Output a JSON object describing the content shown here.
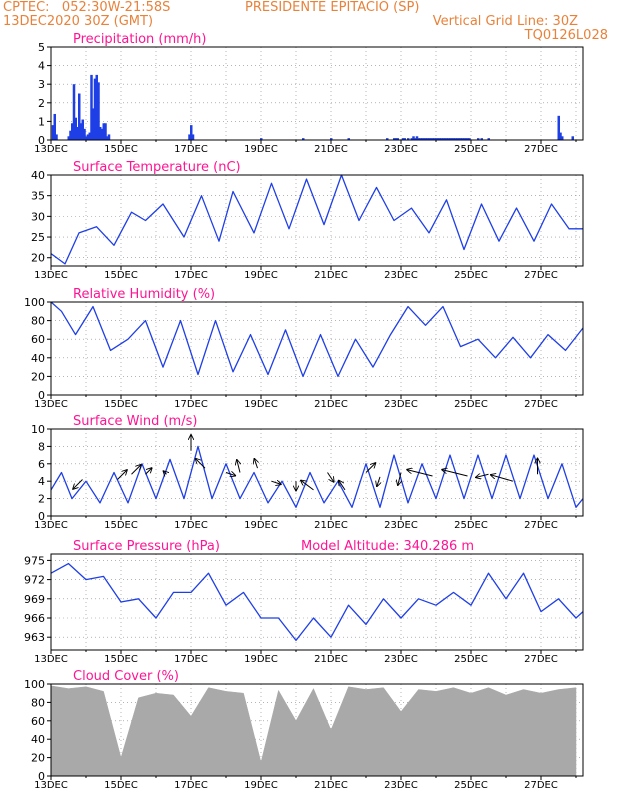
{
  "header": {
    "left_line1": "CPTEC:   052:30W-21:58S",
    "station": "PRESIDENTE EPITACIO (SP)",
    "left_line2": "13DEC2020 30Z (GMT)",
    "grid_note": "Vertical Grid Line: 30Z",
    "model_code": "TQ0126L028"
  },
  "colors": {
    "header": "#e8823a",
    "title": "#ff1493",
    "line": "#1f3fe6",
    "bar": "#1f3fe6",
    "cloud": "#a9a9a9",
    "arrow": "#000000"
  },
  "chart_data": [
    {
      "id": "precipitation",
      "type": "bar",
      "title": "Precipitation (mm/h)",
      "x_unit": "day_of_december",
      "x_range": [
        13,
        28.2
      ],
      "x_ticks": [
        "13DEC",
        "15DEC",
        "17DEC",
        "19DEC",
        "21DEC",
        "23DEC",
        "25DEC",
        "27DEC"
      ],
      "ylim": [
        0,
        5
      ],
      "y_ticks": [
        "0",
        "1",
        "2",
        "3",
        "4",
        "5"
      ],
      "grid": "dotted",
      "x": [
        13.05,
        13.1,
        13.15,
        13.5,
        13.55,
        13.6,
        13.65,
        13.7,
        13.75,
        13.8,
        13.85,
        13.9,
        13.95,
        14.0,
        14.05,
        14.1,
        14.15,
        14.2,
        14.25,
        14.3,
        14.35,
        14.4,
        14.45,
        14.5,
        14.55,
        14.6,
        14.65,
        16.95,
        17.0,
        17.05,
        19.0,
        20.2,
        21.0,
        21.5,
        22.6,
        22.8,
        22.85,
        22.9,
        23.05,
        23.1,
        23.2,
        23.3,
        23.35,
        23.4,
        23.45,
        23.5,
        23.55,
        23.6,
        23.65,
        23.7,
        23.75,
        23.8,
        23.85,
        23.9,
        23.95,
        24.0,
        24.05,
        24.1,
        24.15,
        24.2,
        24.25,
        24.3,
        24.35,
        24.4,
        24.45,
        24.5,
        24.55,
        24.6,
        24.65,
        24.7,
        24.75,
        24.8,
        24.85,
        24.9,
        24.95,
        25.2,
        25.3,
        25.5,
        27.5,
        27.55,
        27.6,
        27.9
      ],
      "values": [
        0.8,
        1.4,
        0.3,
        0.2,
        0.5,
        0.9,
        3.0,
        1.2,
        0.7,
        2.5,
        0.9,
        1.1,
        0.6,
        0.2,
        0.3,
        0.4,
        3.5,
        1.7,
        3.3,
        3.5,
        3.1,
        0.7,
        0.6,
        0.9,
        0.9,
        0.2,
        0.3,
        0.3,
        0.8,
        0.3,
        0.1,
        0.1,
        0.1,
        0.1,
        0.1,
        0.1,
        0.1,
        0.1,
        0.1,
        0.1,
        0.1,
        0.1,
        0.2,
        0.1,
        0.2,
        0.1,
        0.1,
        0.1,
        0.1,
        0.1,
        0.1,
        0.1,
        0.1,
        0.1,
        0.1,
        0.1,
        0.1,
        0.1,
        0.1,
        0.1,
        0.1,
        0.1,
        0.1,
        0.1,
        0.1,
        0.1,
        0.1,
        0.1,
        0.1,
        0.1,
        0.1,
        0.1,
        0.1,
        0.1,
        0.1,
        0.1,
        0.1,
        0.1,
        1.3,
        0.4,
        0.2,
        0.2
      ]
    },
    {
      "id": "temperature",
      "type": "line",
      "title": "Surface Temperature (nC)",
      "x_unit": "day_of_december",
      "x_range": [
        13,
        28.2
      ],
      "x_ticks": [
        "13DEC",
        "15DEC",
        "17DEC",
        "19DEC",
        "21DEC",
        "23DEC",
        "25DEC",
        "27DEC"
      ],
      "ylim": [
        18,
        40
      ],
      "y_ticks": [
        "20",
        "25",
        "30",
        "35",
        "40"
      ],
      "y_tick_values": [
        20,
        25,
        30,
        35,
        40
      ],
      "grid": "dotted",
      "x": [
        13,
        13.4,
        13.8,
        14.3,
        14.8,
        15.3,
        15.7,
        16.2,
        16.8,
        17.3,
        17.8,
        18.2,
        18.8,
        19.3,
        19.8,
        20.3,
        20.8,
        21.3,
        21.8,
        22.3,
        22.8,
        23.3,
        23.8,
        24.3,
        24.8,
        25.3,
        25.8,
        26.3,
        26.8,
        27.3,
        27.8,
        28.2
      ],
      "y": [
        21,
        18.5,
        26,
        27.5,
        23,
        31,
        29,
        33,
        25,
        35,
        24,
        36,
        26,
        38,
        27,
        39,
        28,
        40,
        29,
        37,
        29,
        32,
        26,
        34,
        22,
        33,
        24,
        32,
        24,
        33,
        27,
        27
      ]
    },
    {
      "id": "humidity",
      "type": "line",
      "title": "Relative Humidity (%)",
      "x_unit": "day_of_december",
      "x_range": [
        13,
        28.2
      ],
      "x_ticks": [
        "13DEC",
        "15DEC",
        "17DEC",
        "19DEC",
        "21DEC",
        "23DEC",
        "25DEC",
        "27DEC"
      ],
      "ylim": [
        0,
        100
      ],
      "y_ticks": [
        "0",
        "20",
        "40",
        "60",
        "80",
        "100"
      ],
      "y_tick_values": [
        0,
        20,
        40,
        60,
        80,
        100
      ],
      "grid": "dotted",
      "x": [
        13,
        13.3,
        13.7,
        14.2,
        14.7,
        15.2,
        15.7,
        16.2,
        16.7,
        17.2,
        17.7,
        18.2,
        18.7,
        19.2,
        19.7,
        20.2,
        20.7,
        21.2,
        21.7,
        22.2,
        22.7,
        23.2,
        23.7,
        24.2,
        24.7,
        25.2,
        25.7,
        26.2,
        26.7,
        27.2,
        27.7,
        28.2
      ],
      "y": [
        100,
        90,
        65,
        95,
        48,
        60,
        80,
        30,
        80,
        22,
        80,
        25,
        65,
        22,
        70,
        20,
        65,
        20,
        60,
        30,
        65,
        95,
        75,
        95,
        52,
        60,
        40,
        62,
        40,
        65,
        48,
        72
      ]
    },
    {
      "id": "wind",
      "type": "line",
      "title": "Surface Wind (m/s)",
      "x_unit": "day_of_december",
      "x_range": [
        13,
        28.2
      ],
      "x_ticks": [
        "13DEC",
        "15DEC",
        "17DEC",
        "19DEC",
        "21DEC",
        "23DEC",
        "25DEC",
        "27DEC"
      ],
      "ylim": [
        0,
        10
      ],
      "y_ticks": [
        "0",
        "2",
        "4",
        "6",
        "8",
        "10"
      ],
      "y_tick_values": [
        0,
        2,
        4,
        6,
        8,
        10
      ],
      "grid": "dotted",
      "x": [
        13,
        13.3,
        13.6,
        14,
        14.4,
        14.8,
        15.2,
        15.6,
        16,
        16.4,
        16.8,
        17.2,
        17.6,
        18,
        18.4,
        18.8,
        19.2,
        19.6,
        20,
        20.4,
        20.8,
        21.2,
        21.6,
        22,
        22.4,
        22.8,
        23.2,
        23.6,
        24,
        24.4,
        24.8,
        25.2,
        25.6,
        26,
        26.4,
        26.8,
        27.2,
        27.6,
        28,
        28.2
      ],
      "y": [
        3,
        5,
        2,
        4,
        1.5,
        5,
        1.5,
        6,
        2,
        6.5,
        2,
        8,
        2,
        6,
        2,
        5,
        1.5,
        4,
        1,
        5,
        1.5,
        4,
        1,
        6,
        1,
        7,
        1.5,
        6,
        2,
        7,
        2,
        7,
        2,
        7,
        2,
        7,
        2,
        6,
        1,
        2
      ],
      "arrows_x": [
        13.9,
        14.9,
        15.3,
        15.7,
        16.3,
        17,
        17.4,
        18,
        18.4,
        18.9,
        19.3,
        20,
        20.5,
        20.9,
        21.4,
        22,
        22.4,
        23,
        23.9,
        24.9,
        25.5,
        26.2,
        26.9
      ],
      "arrows_y": [
        4.2,
        4.2,
        4.8,
        4.8,
        4.8,
        7.5,
        5.5,
        5,
        5,
        5.5,
        4,
        4,
        3,
        5,
        3,
        5,
        4.5,
        5,
        4.6,
        4.6,
        4.8,
        4,
        4.8
      ],
      "arrows_u": [
        -3,
        3,
        3,
        2,
        -1,
        0,
        -3,
        3,
        -1,
        -1,
        3,
        0,
        -4,
        2,
        -2,
        3,
        -1,
        -1,
        -8,
        -8,
        -4,
        -7,
        0
      ],
      "arrows_v": [
        -3,
        3,
        3,
        2,
        1,
        5,
        3,
        -1,
        4,
        3,
        -1,
        -3,
        3,
        -3,
        3,
        3,
        -3,
        -4,
        2,
        2,
        -1,
        2,
        5
      ]
    },
    {
      "id": "pressure",
      "type": "line",
      "title": "Surface Pressure (hPa)",
      "annotation": "Model Altitude: 340.286 m",
      "x_unit": "day_of_december",
      "x_range": [
        13,
        28.2
      ],
      "x_ticks": [
        "13DEC",
        "15DEC",
        "17DEC",
        "19DEC",
        "21DEC",
        "23DEC",
        "25DEC",
        "27DEC"
      ],
      "ylim": [
        961,
        976
      ],
      "y_ticks": [
        "963",
        "966",
        "969",
        "972",
        "975"
      ],
      "y_tick_values": [
        963,
        966,
        969,
        972,
        975
      ],
      "grid": "dotted",
      "x": [
        13,
        13.5,
        14,
        14.5,
        15,
        15.5,
        16,
        16.5,
        17,
        17.5,
        18,
        18.5,
        19,
        19.5,
        20,
        20.5,
        21,
        21.5,
        22,
        22.5,
        23,
        23.5,
        24,
        24.5,
        25,
        25.5,
        26,
        26.5,
        27,
        27.5,
        28,
        28.2
      ],
      "y": [
        973,
        974.5,
        972,
        972.5,
        968.5,
        969,
        966,
        970,
        970,
        973,
        968,
        970,
        966,
        966,
        962.5,
        966,
        963,
        968,
        965,
        969,
        966,
        969,
        968,
        970,
        968,
        973,
        969,
        973,
        967,
        969,
        966,
        967
      ]
    },
    {
      "id": "cloud",
      "type": "bar",
      "title": "Cloud Cover (%)",
      "x_unit": "day_of_december",
      "x_range": [
        13,
        28.2
      ],
      "x_ticks": [
        "13DEC",
        "15DEC",
        "17DEC",
        "19DEC",
        "21DEC",
        "23DEC",
        "25DEC",
        "27DEC"
      ],
      "ylim": [
        0,
        100
      ],
      "y_ticks": [
        "0",
        "20",
        "40",
        "60",
        "80",
        "100"
      ],
      "y_tick_values": [
        0,
        20,
        40,
        60,
        80,
        100
      ],
      "grid": "dotted",
      "x": [
        13,
        13.5,
        14,
        14.5,
        15,
        15.5,
        16,
        16.5,
        17,
        17.5,
        18,
        18.5,
        19,
        19.5,
        20,
        20.5,
        21,
        21.5,
        22,
        22.5,
        23,
        23.5,
        24,
        24.5,
        25,
        25.5,
        26,
        26.5,
        27,
        27.5,
        28
      ],
      "values": [
        98,
        95,
        97,
        92,
        20,
        85,
        90,
        88,
        65,
        96,
        92,
        90,
        15,
        93,
        60,
        95,
        50,
        97,
        94,
        96,
        70,
        94,
        92,
        96,
        90,
        96,
        88,
        94,
        90,
        94,
        96
      ]
    }
  ]
}
